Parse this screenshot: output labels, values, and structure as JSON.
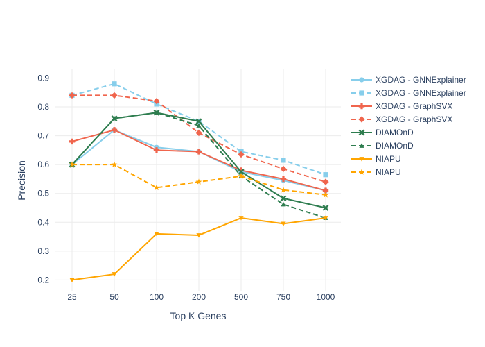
{
  "chart_data": {
    "type": "line",
    "title": "",
    "xlabel": "Top K Genes",
    "ylabel": "Precision",
    "categories": [
      "25",
      "50",
      "100",
      "200",
      "500",
      "750",
      "1000"
    ],
    "ylim": [
      0.16,
      0.93
    ],
    "yticks": [
      0.2,
      0.3,
      0.4,
      0.5,
      0.6,
      0.7,
      0.8,
      0.9
    ],
    "ytick_labels": [
      "0.2",
      "0.3",
      "0.4",
      "0.5",
      "0.6",
      "0.7",
      "0.8",
      "0.9"
    ],
    "grid": true,
    "legend_position": "right",
    "series": [
      {
        "name": "XGDAG - GNNExplainer",
        "color": "#87ceeb",
        "dash": "solid",
        "marker": "circle",
        "values": [
          0.6,
          0.72,
          0.66,
          0.645,
          0.575,
          0.545,
          0.51
        ]
      },
      {
        "name": "XGDAG - GNNExplainer",
        "color": "#87ceeb",
        "dash": "dash",
        "marker": "square",
        "values": [
          0.84,
          0.88,
          0.81,
          0.75,
          0.645,
          0.615,
          0.565
        ]
      },
      {
        "name": "XGDAG - GraphSVX",
        "color": "#f0654d",
        "dash": "solid",
        "marker": "cross",
        "values": [
          0.68,
          0.72,
          0.65,
          0.645,
          0.58,
          0.55,
          0.51
        ]
      },
      {
        "name": "XGDAG - GraphSVX",
        "color": "#f0654d",
        "dash": "dash",
        "marker": "diamond",
        "values": [
          0.84,
          0.84,
          0.82,
          0.71,
          0.635,
          0.585,
          0.54
        ]
      },
      {
        "name": "DIAMOnD",
        "color": "#2e7d4f",
        "dash": "solid",
        "marker": "x",
        "values": [
          0.6,
          0.76,
          0.78,
          0.75,
          0.575,
          0.483,
          0.45
        ]
      },
      {
        "name": "DIAMOnD",
        "color": "#2e7d4f",
        "dash": "dash",
        "marker": "triangle-up",
        "values": [
          0.6,
          0.76,
          0.78,
          0.735,
          0.56,
          0.462,
          0.415
        ]
      },
      {
        "name": "NIAPU",
        "color": "#ffa500",
        "dash": "solid",
        "marker": "triangle-down",
        "values": [
          0.2,
          0.22,
          0.36,
          0.355,
          0.415,
          0.395,
          0.415
        ]
      },
      {
        "name": "NIAPU",
        "color": "#ffa500",
        "dash": "dash",
        "marker": "star",
        "values": [
          0.6,
          0.6,
          0.52,
          0.54,
          0.56,
          0.512,
          0.495
        ]
      }
    ]
  }
}
